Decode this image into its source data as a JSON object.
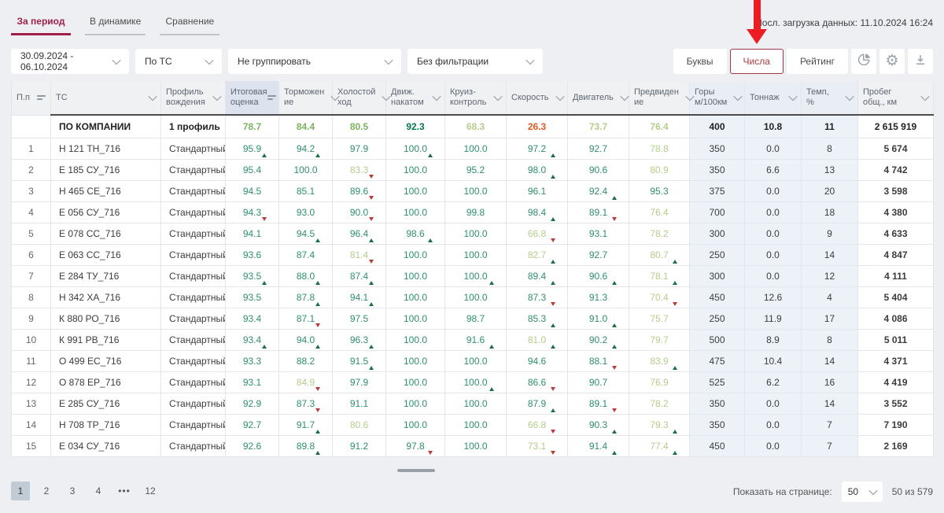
{
  "header": {
    "tabs": [
      {
        "label": "За период",
        "active": true
      },
      {
        "label": "В динамике",
        "active": false
      },
      {
        "label": "Сравнение",
        "active": false
      }
    ],
    "last_update": "Посл. загрузка данных: 11.10.2024 16:24"
  },
  "toolbar": {
    "filters": [
      {
        "value": "30.09.2024 - 06.10.2024"
      },
      {
        "value": "По ТС"
      },
      {
        "value": "Не группировать"
      },
      {
        "value": "Без фильтрации"
      }
    ],
    "view_modes": [
      {
        "label": "Буквы",
        "active": false
      },
      {
        "label": "Числа",
        "active": true
      },
      {
        "label": "Рейтинг",
        "active": false
      }
    ],
    "icon_buttons": [
      {
        "icon": "pie-chart-icon"
      },
      {
        "icon": "gear-icon"
      },
      {
        "icon": "download-icon"
      }
    ]
  },
  "annotation": {
    "type": "red-arrow",
    "points_to": "Числа",
    "color": "#ed1c24"
  },
  "table": {
    "columns": [
      {
        "lines": [
          "П.п"
        ],
        "icon": "sort"
      },
      {
        "lines": [
          "ТС"
        ],
        "icon": "chevron"
      },
      {
        "lines": [
          "Профиль",
          "вождения"
        ],
        "icon": "chevron"
      },
      {
        "lines": [
          "Итоговая",
          "оценка"
        ],
        "icon": "sort",
        "tint": "header"
      },
      {
        "lines": [
          "Торможен",
          "ие"
        ],
        "icon": "chevron"
      },
      {
        "lines": [
          "Холостой",
          "ход"
        ],
        "icon": "chevron"
      },
      {
        "lines": [
          "Движ.",
          "накатом"
        ],
        "icon": "chevron"
      },
      {
        "lines": [
          "Круиз-",
          "контроль"
        ],
        "icon": "chevron"
      },
      {
        "lines": [
          "Скорость"
        ],
        "icon": "chevron"
      },
      {
        "lines": [
          "Двигатель"
        ],
        "icon": "chevron"
      },
      {
        "lines": [
          "Предвиден",
          "ие"
        ],
        "icon": "chevron"
      },
      {
        "lines": [
          "Горы",
          "м/100км"
        ],
        "icon": "chevron",
        "tint": "column"
      },
      {
        "lines": [
          "Тоннаж"
        ],
        "icon": "chevron",
        "tint": "column"
      },
      {
        "lines": [
          "Темп, %"
        ],
        "icon": "chevron",
        "tint": "column"
      },
      {
        "lines": [
          "Пробег",
          "общ., км"
        ],
        "icon": "chevron"
      }
    ],
    "company_row": {
      "tc": "ПО КОМПАНИИ",
      "p": "1 профиль",
      "s": [
        [
          "78.7",
          "mg",
          ""
        ],
        [
          "84.4",
          "mg",
          ""
        ],
        [
          "80.5",
          "mg",
          ""
        ],
        [
          "92.3",
          "dg",
          ""
        ],
        [
          "68.3",
          "lg",
          ""
        ],
        [
          "26.3",
          "r",
          ""
        ],
        [
          "73.7",
          "lg",
          ""
        ],
        [
          "76.4",
          "lg",
          ""
        ]
      ],
      "r": [
        "400",
        "10.8",
        "11",
        "2 615 919"
      ]
    },
    "rows": [
      {
        "n": "1",
        "tc": "Н 121 ТН_716",
        "p": "Стандартный",
        "s": [
          [
            "95.9",
            "g",
            "u"
          ],
          [
            "94.2",
            "g",
            "u"
          ],
          [
            "97.9",
            "g",
            ""
          ],
          [
            "100.0",
            "g",
            "u"
          ],
          [
            "100.0",
            "g",
            ""
          ],
          [
            "97.2",
            "g",
            "u"
          ],
          [
            "92.7",
            "g",
            ""
          ],
          [
            "78.8",
            "lg",
            ""
          ]
        ],
        "r": [
          "350",
          "0.0",
          "8",
          "5 674"
        ]
      },
      {
        "n": "2",
        "tc": "Е 185 СУ_716",
        "p": "Стандартный",
        "s": [
          [
            "95.4",
            "g",
            ""
          ],
          [
            "100.0",
            "g",
            ""
          ],
          [
            "83.3",
            "lg",
            "d"
          ],
          [
            "100.0",
            "g",
            ""
          ],
          [
            "95.2",
            "g",
            ""
          ],
          [
            "98.0",
            "g",
            "u"
          ],
          [
            "90.6",
            "g",
            ""
          ],
          [
            "80.9",
            "lg",
            ""
          ]
        ],
        "r": [
          "350",
          "6.6",
          "13",
          "4 742"
        ]
      },
      {
        "n": "3",
        "tc": "Н 465 СЕ_716",
        "p": "Стандартный",
        "s": [
          [
            "94.5",
            "g",
            ""
          ],
          [
            "85.1",
            "g",
            ""
          ],
          [
            "89.6",
            "g",
            "d"
          ],
          [
            "100.0",
            "g",
            ""
          ],
          [
            "100.0",
            "g",
            ""
          ],
          [
            "96.1",
            "g",
            ""
          ],
          [
            "92.4",
            "g",
            "u"
          ],
          [
            "95.3",
            "g",
            ""
          ]
        ],
        "r": [
          "375",
          "0.0",
          "20",
          "3 598"
        ]
      },
      {
        "n": "4",
        "tc": "Е 056 СУ_716",
        "p": "Стандартный",
        "s": [
          [
            "94.3",
            "g",
            "d"
          ],
          [
            "93.0",
            "g",
            ""
          ],
          [
            "90.0",
            "g",
            "d"
          ],
          [
            "100.0",
            "g",
            ""
          ],
          [
            "99.8",
            "g",
            ""
          ],
          [
            "98.4",
            "g",
            "u"
          ],
          [
            "89.1",
            "g",
            "d"
          ],
          [
            "76.4",
            "lg",
            ""
          ]
        ],
        "r": [
          "700",
          "0.0",
          "18",
          "4 380"
        ]
      },
      {
        "n": "5",
        "tc": "Е 078 СС_716",
        "p": "Стандартный",
        "s": [
          [
            "94.1",
            "g",
            ""
          ],
          [
            "94.5",
            "g",
            "u"
          ],
          [
            "96.4",
            "g",
            "u"
          ],
          [
            "98.6",
            "g",
            "u"
          ],
          [
            "100.0",
            "g",
            ""
          ],
          [
            "66.8",
            "lg",
            "d"
          ],
          [
            "93.1",
            "g",
            ""
          ],
          [
            "78.2",
            "lg",
            ""
          ]
        ],
        "r": [
          "300",
          "0.0",
          "9",
          "4 633"
        ]
      },
      {
        "n": "6",
        "tc": "Е 063 СС_716",
        "p": "Стандартный",
        "s": [
          [
            "93.6",
            "g",
            ""
          ],
          [
            "87.4",
            "g",
            ""
          ],
          [
            "81.4",
            "lg",
            "d"
          ],
          [
            "100.0",
            "g",
            ""
          ],
          [
            "100.0",
            "g",
            ""
          ],
          [
            "82.7",
            "lg",
            "u"
          ],
          [
            "92.7",
            "g",
            ""
          ],
          [
            "80.7",
            "lg",
            "u"
          ]
        ],
        "r": [
          "250",
          "0.0",
          "14",
          "4 847"
        ]
      },
      {
        "n": "7",
        "tc": "Е 284 ТУ_716",
        "p": "Стандартный",
        "s": [
          [
            "93.5",
            "g",
            "u"
          ],
          [
            "88.0",
            "g",
            "u"
          ],
          [
            "87.4",
            "g",
            "u"
          ],
          [
            "100.0",
            "g",
            ""
          ],
          [
            "100.0",
            "g",
            "u"
          ],
          [
            "89.4",
            "g",
            "u"
          ],
          [
            "90.6",
            "g",
            "u"
          ],
          [
            "78.1",
            "lg",
            "u"
          ]
        ],
        "r": [
          "300",
          "0.0",
          "12",
          "4 111"
        ]
      },
      {
        "n": "8",
        "tc": "Н 342 ХА_716",
        "p": "Стандартный",
        "s": [
          [
            "93.5",
            "g",
            ""
          ],
          [
            "87.8",
            "g",
            "u"
          ],
          [
            "94.1",
            "g",
            "u"
          ],
          [
            "100.0",
            "g",
            ""
          ],
          [
            "100.0",
            "g",
            ""
          ],
          [
            "87.3",
            "g",
            "d"
          ],
          [
            "91.3",
            "g",
            ""
          ],
          [
            "70.4",
            "lg",
            "d"
          ]
        ],
        "r": [
          "450",
          "12.6",
          "4",
          "5 404"
        ]
      },
      {
        "n": "9",
        "tc": "К 880 РО_716",
        "p": "Стандартный",
        "s": [
          [
            "93.4",
            "g",
            ""
          ],
          [
            "87.1",
            "g",
            "d"
          ],
          [
            "97.5",
            "g",
            ""
          ],
          [
            "100.0",
            "g",
            ""
          ],
          [
            "98.7",
            "g",
            ""
          ],
          [
            "85.3",
            "g",
            "u"
          ],
          [
            "91.0",
            "g",
            "u"
          ],
          [
            "75.7",
            "lg",
            ""
          ]
        ],
        "r": [
          "250",
          "11.9",
          "17",
          "4 086"
        ]
      },
      {
        "n": "10",
        "tc": "К 991 РВ_716",
        "p": "Стандартный",
        "s": [
          [
            "93.4",
            "g",
            "u"
          ],
          [
            "94.0",
            "g",
            "u"
          ],
          [
            "96.3",
            "g",
            "u"
          ],
          [
            "100.0",
            "g",
            ""
          ],
          [
            "91.6",
            "g",
            "u"
          ],
          [
            "81.0",
            "lg",
            "u"
          ],
          [
            "90.2",
            "g",
            "u"
          ],
          [
            "79.7",
            "lg",
            ""
          ]
        ],
        "r": [
          "500",
          "8.9",
          "8",
          "5 011"
        ]
      },
      {
        "n": "11",
        "tc": "О 499 ЕС_716",
        "p": "Стандартный",
        "s": [
          [
            "93.3",
            "g",
            ""
          ],
          [
            "88.2",
            "g",
            ""
          ],
          [
            "91.5",
            "g",
            "u"
          ],
          [
            "100.0",
            "g",
            ""
          ],
          [
            "100.0",
            "g",
            ""
          ],
          [
            "94.6",
            "g",
            ""
          ],
          [
            "88.1",
            "g",
            "d"
          ],
          [
            "83.9",
            "lg",
            "u"
          ]
        ],
        "r": [
          "475",
          "10.4",
          "14",
          "4 371"
        ]
      },
      {
        "n": "12",
        "tc": "О 878 ЕР_716",
        "p": "Стандартный",
        "s": [
          [
            "93.1",
            "g",
            ""
          ],
          [
            "84.9",
            "lg",
            "d"
          ],
          [
            "97.9",
            "g",
            ""
          ],
          [
            "100.0",
            "g",
            ""
          ],
          [
            "100.0",
            "g",
            "u"
          ],
          [
            "86.6",
            "g",
            "d"
          ],
          [
            "90.7",
            "g",
            ""
          ],
          [
            "76.9",
            "lg",
            ""
          ]
        ],
        "r": [
          "525",
          "6.2",
          "16",
          "4 419"
        ]
      },
      {
        "n": "13",
        "tc": "Е 285 СУ_716",
        "p": "Стандартный",
        "s": [
          [
            "92.9",
            "g",
            ""
          ],
          [
            "87.3",
            "g",
            "d"
          ],
          [
            "91.1",
            "g",
            ""
          ],
          [
            "100.0",
            "g",
            ""
          ],
          [
            "100.0",
            "g",
            ""
          ],
          [
            "87.9",
            "g",
            "u"
          ],
          [
            "89.1",
            "g",
            "d"
          ],
          [
            "78.2",
            "lg",
            ""
          ]
        ],
        "r": [
          "350",
          "0.0",
          "14",
          "3 552"
        ]
      },
      {
        "n": "14",
        "tc": "Н 708 ТР_716",
        "p": "Стандартный",
        "s": [
          [
            "92.7",
            "g",
            ""
          ],
          [
            "91.7",
            "g",
            "u"
          ],
          [
            "80.6",
            "lg",
            ""
          ],
          [
            "100.0",
            "g",
            ""
          ],
          [
            "100.0",
            "g",
            ""
          ],
          [
            "66.8",
            "lg",
            "d"
          ],
          [
            "90.3",
            "g",
            "u"
          ],
          [
            "79.3",
            "lg",
            "u"
          ]
        ],
        "r": [
          "350",
          "0.0",
          "7",
          "7 190"
        ]
      },
      {
        "n": "15",
        "tc": "Е 034 СУ_716",
        "p": "Стандартный",
        "s": [
          [
            "92.6",
            "g",
            ""
          ],
          [
            "89.8",
            "g",
            "u"
          ],
          [
            "91.2",
            "g",
            ""
          ],
          [
            "97.8",
            "g",
            "d"
          ],
          [
            "100.0",
            "g",
            ""
          ],
          [
            "73.1",
            "lg",
            "d"
          ],
          [
            "91.4",
            "g",
            "u"
          ],
          [
            "77.4",
            "lg",
            "u"
          ]
        ],
        "r": [
          "450",
          "0.0",
          "7",
          "2 169"
        ]
      }
    ]
  },
  "pagination": {
    "pages": [
      {
        "label": "1",
        "active": true
      },
      {
        "label": "2",
        "active": false
      },
      {
        "label": "3",
        "active": false
      },
      {
        "label": "4",
        "active": false
      },
      {
        "label": "•••",
        "active": false,
        "ellipsis": true
      },
      {
        "label": "12",
        "active": false
      }
    ],
    "page_size_label": "Показать на странице:",
    "page_size": "50",
    "range": "50 из 579"
  },
  "colors": {
    "accent": "#9e2048",
    "score_green": "#2e8f70",
    "score_mid_green": "#79b55e",
    "score_light_green": "#b5cd8a",
    "score_dark_green": "#00774f",
    "score_red": "#e2571f",
    "up_arrow": "#1d6f49",
    "down_arrow": "#b93a3a",
    "tint_cell": "#edf2f9",
    "annotation_red": "#ed1c24"
  }
}
